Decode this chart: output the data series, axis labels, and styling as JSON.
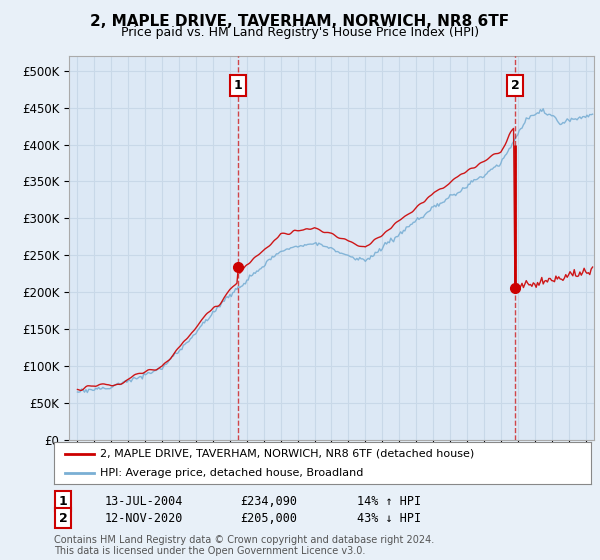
{
  "title": "2, MAPLE DRIVE, TAVERHAM, NORWICH, NR8 6TF",
  "subtitle": "Price paid vs. HM Land Registry's House Price Index (HPI)",
  "bg_color": "#e8f0f8",
  "plot_bg_color": "#dce8f5",
  "grid_color": "#c8d8e8",
  "sale1": {
    "date": "13-JUL-2004",
    "price": 234090,
    "label": "1",
    "hpi_pct": "14% ↑ HPI"
  },
  "sale2": {
    "date": "12-NOV-2020",
    "price": 205000,
    "label": "2",
    "hpi_pct": "43% ↓ HPI"
  },
  "legend_label_red": "2, MAPLE DRIVE, TAVERHAM, NORWICH, NR8 6TF (detached house)",
  "legend_label_blue": "HPI: Average price, detached house, Broadland",
  "footer": "Contains HM Land Registry data © Crown copyright and database right 2024.\nThis data is licensed under the Open Government Licence v3.0.",
  "ylim": [
    0,
    520000
  ],
  "yticks": [
    0,
    50000,
    100000,
    150000,
    200000,
    250000,
    300000,
    350000,
    400000,
    450000,
    500000
  ],
  "red_color": "#cc0000",
  "blue_color": "#7aafd4",
  "dashed_color": "#cc0000"
}
